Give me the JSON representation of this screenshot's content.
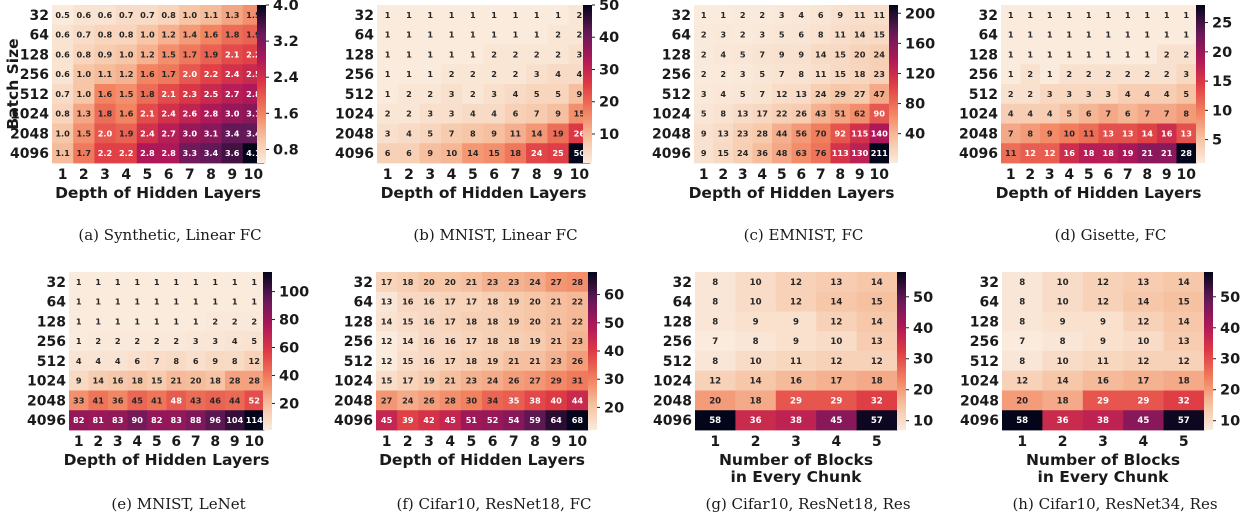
{
  "panels_meta": {
    "row_labels": [
      "32",
      "64",
      "128",
      "256",
      "512",
      "1024",
      "2048",
      "4096"
    ],
    "batch_axis_label": "Batch Size"
  },
  "chart_data": [
    {
      "type": "heatmap",
      "caption": "(a) Synthetic, Linear FC",
      "xlabel": [
        "Depth of Hidden Layers"
      ],
      "ylabel": "Batch Size",
      "x": [
        "1",
        "2",
        "3",
        "4",
        "5",
        "6",
        "7",
        "8",
        "9",
        "10"
      ],
      "y": [
        "32",
        "64",
        "128",
        "256",
        "512",
        "1024",
        "2048",
        "4096"
      ],
      "values": [
        [
          "0.5",
          "0.6",
          "0.6",
          "0.7",
          "0.7",
          "0.8",
          "1.0",
          "1.1",
          "1.3",
          "1.5"
        ],
        [
          "0.6",
          "0.7",
          "0.8",
          "0.8",
          "1.0",
          "1.2",
          "1.4",
          "1.6",
          "1.8",
          "1.9"
        ],
        [
          "0.6",
          "0.8",
          "0.9",
          "1.0",
          "1.2",
          "1.5",
          "1.7",
          "1.9",
          "2.1",
          "2.2"
        ],
        [
          "0.6",
          "1.0",
          "1.1",
          "1.2",
          "1.6",
          "1.7",
          "2.0",
          "2.2",
          "2.4",
          "2.5"
        ],
        [
          "0.7",
          "1.0",
          "1.6",
          "1.5",
          "1.8",
          "2.1",
          "2.3",
          "2.5",
          "2.7",
          "2.8"
        ],
        [
          "0.8",
          "1.3",
          "1.8",
          "1.6",
          "2.1",
          "2.4",
          "2.6",
          "2.8",
          "3.0",
          "3.1"
        ],
        [
          "1.0",
          "1.5",
          "2.0",
          "1.9",
          "2.4",
          "2.7",
          "3.0",
          "3.1",
          "3.4",
          "3.4"
        ],
        [
          "1.1",
          "1.7",
          "2.2",
          "2.2",
          "2.8",
          "2.8",
          "3.3",
          "3.4",
          "3.6",
          "4.1"
        ]
      ],
      "vmin": 0.5,
      "vmax": 4.0,
      "colorbar_ticks": [
        "4.0",
        "3.2",
        "2.4",
        "1.6",
        "0.8"
      ],
      "colorbar_tick_values": [
        4.0,
        3.2,
        2.4,
        1.6,
        0.8
      ]
    },
    {
      "type": "heatmap",
      "caption": "(b) MNIST, Linear FC",
      "xlabel": [
        "Depth of Hidden Layers"
      ],
      "ylabel": "",
      "x": [
        "1",
        "2",
        "3",
        "4",
        "5",
        "6",
        "7",
        "8",
        "9",
        "10"
      ],
      "y": [
        "32",
        "64",
        "128",
        "256",
        "512",
        "1024",
        "2048",
        "4096"
      ],
      "values": [
        [
          "1",
          "1",
          "1",
          "1",
          "1",
          "1",
          "1",
          "1",
          "1",
          "2"
        ],
        [
          "1",
          "1",
          "1",
          "1",
          "1",
          "1",
          "1",
          "1",
          "2",
          "2"
        ],
        [
          "1",
          "1",
          "1",
          "1",
          "1",
          "2",
          "2",
          "2",
          "2",
          "3"
        ],
        [
          "1",
          "1",
          "1",
          "2",
          "2",
          "2",
          "2",
          "3",
          "4",
          "4"
        ],
        [
          "1",
          "2",
          "2",
          "3",
          "2",
          "3",
          "4",
          "5",
          "5",
          "9"
        ],
        [
          "2",
          "2",
          "3",
          "3",
          "4",
          "4",
          "6",
          "7",
          "9",
          "15"
        ],
        [
          "3",
          "4",
          "5",
          "7",
          "8",
          "9",
          "11",
          "14",
          "19",
          "26"
        ],
        [
          "6",
          "6",
          "9",
          "10",
          "14",
          "15",
          "18",
          "24",
          "25",
          "50"
        ]
      ],
      "vmin": 1,
      "vmax": 50,
      "colorbar_ticks": [
        "50",
        "40",
        "30",
        "20",
        "10"
      ],
      "colorbar_tick_values": [
        50,
        40,
        30,
        20,
        10
      ]
    },
    {
      "type": "heatmap",
      "caption": "(c) EMNIST, FC",
      "xlabel": [
        "Depth of Hidden Layers"
      ],
      "ylabel": "",
      "x": [
        "1",
        "2",
        "3",
        "4",
        "5",
        "6",
        "7",
        "8",
        "9",
        "10"
      ],
      "y": [
        "32",
        "64",
        "128",
        "256",
        "512",
        "1024",
        "2048",
        "4096"
      ],
      "values": [
        [
          "1",
          "1",
          "2",
          "2",
          "3",
          "4",
          "6",
          "9",
          "11",
          "11"
        ],
        [
          "2",
          "3",
          "2",
          "3",
          "5",
          "6",
          "8",
          "11",
          "14",
          "15"
        ],
        [
          "2",
          "4",
          "5",
          "7",
          "9",
          "9",
          "14",
          "15",
          "20",
          "24"
        ],
        [
          "2",
          "2",
          "3",
          "5",
          "7",
          "8",
          "11",
          "15",
          "18",
          "23"
        ],
        [
          "3",
          "4",
          "5",
          "7",
          "12",
          "13",
          "24",
          "29",
          "27",
          "47"
        ],
        [
          "5",
          "8",
          "13",
          "17",
          "22",
          "26",
          "43",
          "51",
          "62",
          "90"
        ],
        [
          "9",
          "13",
          "23",
          "28",
          "44",
          "56",
          "70",
          "92",
          "115",
          "140"
        ],
        [
          "9",
          "15",
          "24",
          "36",
          "48",
          "63",
          "76",
          "113",
          "130",
          "211"
        ]
      ],
      "vmin": 1,
      "vmax": 211,
      "colorbar_ticks": [
        "200",
        "160",
        "120",
        "80",
        "40"
      ],
      "colorbar_tick_values": [
        200,
        160,
        120,
        80,
        40
      ]
    },
    {
      "type": "heatmap",
      "caption": "(d) Gisette, FC",
      "xlabel": [
        "Depth of Hidden Layers"
      ],
      "ylabel": "",
      "x": [
        "1",
        "2",
        "3",
        "4",
        "5",
        "6",
        "7",
        "8",
        "9",
        "10"
      ],
      "y": [
        "32",
        "64",
        "128",
        "256",
        "512",
        "1024",
        "2048",
        "4096"
      ],
      "values": [
        [
          "1",
          "1",
          "1",
          "1",
          "1",
          "1",
          "1",
          "1",
          "1",
          "1"
        ],
        [
          "1",
          "1",
          "1",
          "1",
          "1",
          "1",
          "1",
          "1",
          "1",
          "1"
        ],
        [
          "1",
          "1",
          "1",
          "1",
          "1",
          "1",
          "1",
          "1",
          "2",
          "2"
        ],
        [
          "1",
          "2",
          "1",
          "2",
          "2",
          "2",
          "2",
          "2",
          "2",
          "3"
        ],
        [
          "2",
          "2",
          "3",
          "3",
          "3",
          "3",
          "4",
          "4",
          "4",
          "5"
        ],
        [
          "4",
          "4",
          "4",
          "5",
          "6",
          "7",
          "6",
          "7",
          "7",
          "8"
        ],
        [
          "7",
          "8",
          "9",
          "10",
          "11",
          "13",
          "13",
          "14",
          "16",
          "13"
        ],
        [
          "11",
          "12",
          "12",
          "16",
          "18",
          "18",
          "19",
          "21",
          "21",
          "28"
        ]
      ],
      "vmin": 1,
      "vmax": 28,
      "colorbar_ticks": [
        "25",
        "20",
        "15",
        "10",
        "5"
      ],
      "colorbar_tick_values": [
        25,
        20,
        15,
        10,
        5
      ]
    },
    {
      "type": "heatmap",
      "caption": "(e) MNIST, LeNet",
      "xlabel": [
        "Depth of Hidden Layers"
      ],
      "ylabel": "",
      "x": [
        "1",
        "2",
        "3",
        "4",
        "5",
        "6",
        "7",
        "8",
        "9",
        "10"
      ],
      "y": [
        "32",
        "64",
        "128",
        "256",
        "512",
        "1024",
        "2048",
        "4096"
      ],
      "values": [
        [
          "1",
          "1",
          "1",
          "1",
          "1",
          "1",
          "1",
          "1",
          "1",
          "1"
        ],
        [
          "1",
          "1",
          "1",
          "1",
          "1",
          "1",
          "1",
          "1",
          "1",
          "1"
        ],
        [
          "1",
          "1",
          "1",
          "1",
          "1",
          "1",
          "1",
          "2",
          "2",
          "2"
        ],
        [
          "1",
          "2",
          "2",
          "2",
          "2",
          "2",
          "3",
          "3",
          "4",
          "5"
        ],
        [
          "4",
          "4",
          "4",
          "6",
          "7",
          "8",
          "6",
          "9",
          "8",
          "12"
        ],
        [
          "9",
          "14",
          "16",
          "18",
          "15",
          "21",
          "20",
          "18",
          "28",
          "28"
        ],
        [
          "33",
          "41",
          "36",
          "45",
          "41",
          "48",
          "43",
          "46",
          "44",
          "52"
        ],
        [
          "82",
          "81",
          "83",
          "90",
          "82",
          "83",
          "88",
          "96",
          "104",
          "114"
        ]
      ],
      "vmin": 1,
      "vmax": 114,
      "colorbar_ticks": [
        "100",
        "80",
        "60",
        "40",
        "20"
      ],
      "colorbar_tick_values": [
        100,
        80,
        60,
        40,
        20
      ]
    },
    {
      "type": "heatmap",
      "caption": "(f) Cifar10, ResNet18, FC",
      "xlabel": [
        "Depth of Hidden Layers"
      ],
      "ylabel": "",
      "x": [
        "1",
        "2",
        "3",
        "4",
        "5",
        "6",
        "7",
        "8",
        "9",
        "10"
      ],
      "y": [
        "32",
        "64",
        "128",
        "256",
        "512",
        "1024",
        "2048",
        "4096"
      ],
      "values": [
        [
          "17",
          "18",
          "20",
          "20",
          "21",
          "23",
          "23",
          "24",
          "27",
          "28"
        ],
        [
          "13",
          "16",
          "16",
          "17",
          "17",
          "18",
          "19",
          "20",
          "21",
          "22"
        ],
        [
          "14",
          "15",
          "16",
          "17",
          "18",
          "18",
          "19",
          "20",
          "21",
          "22"
        ],
        [
          "12",
          "14",
          "16",
          "16",
          "17",
          "18",
          "18",
          "19",
          "21",
          "23"
        ],
        [
          "12",
          "15",
          "16",
          "17",
          "18",
          "19",
          "21",
          "21",
          "23",
          "26"
        ],
        [
          "15",
          "17",
          "19",
          "21",
          "23",
          "24",
          "26",
          "27",
          "29",
          "31"
        ],
        [
          "27",
          "24",
          "26",
          "28",
          "30",
          "34",
          "35",
          "38",
          "40",
          "44"
        ],
        [
          "45",
          "39",
          "42",
          "45",
          "51",
          "52",
          "54",
          "59",
          "64",
          "68"
        ]
      ],
      "vmin": 12,
      "vmax": 68,
      "colorbar_ticks": [
        "60",
        "50",
        "40",
        "30",
        "20"
      ],
      "colorbar_tick_values": [
        60,
        50,
        40,
        30,
        20
      ]
    },
    {
      "type": "heatmap",
      "caption": "(g) Cifar10, ResNet18, Res",
      "xlabel": [
        "Number of Blocks",
        "in Every Chunk"
      ],
      "ylabel": "",
      "x": [
        "1",
        "2",
        "3",
        "4",
        "5"
      ],
      "y": [
        "32",
        "64",
        "128",
        "256",
        "512",
        "1024",
        "2048",
        "4096"
      ],
      "values": [
        [
          "8",
          "10",
          "12",
          "13",
          "14"
        ],
        [
          "8",
          "10",
          "12",
          "14",
          "15"
        ],
        [
          "8",
          "9",
          "9",
          "12",
          "14"
        ],
        [
          "7",
          "8",
          "9",
          "10",
          "13"
        ],
        [
          "8",
          "10",
          "11",
          "12",
          "12"
        ],
        [
          "12",
          "14",
          "16",
          "17",
          "18"
        ],
        [
          "20",
          "18",
          "29",
          "29",
          "32"
        ],
        [
          "58",
          "36",
          "38",
          "45",
          "57"
        ]
      ],
      "vmin": 7,
      "vmax": 58,
      "colorbar_ticks": [
        "50",
        "40",
        "30",
        "20",
        "10"
      ],
      "colorbar_tick_values": [
        50,
        40,
        30,
        20,
        10
      ]
    },
    {
      "type": "heatmap",
      "caption": "(h) Cifar10, ResNet34, Res",
      "xlabel": [
        "Number of Blocks",
        "in Every Chunk"
      ],
      "ylabel": "",
      "x": [
        "1",
        "2",
        "3",
        "4",
        "5"
      ],
      "y": [
        "32",
        "64",
        "128",
        "256",
        "512",
        "1024",
        "2048",
        "4096"
      ],
      "values": [
        [
          "8",
          "10",
          "12",
          "13",
          "14"
        ],
        [
          "8",
          "10",
          "12",
          "14",
          "15"
        ],
        [
          "8",
          "9",
          "9",
          "12",
          "14"
        ],
        [
          "7",
          "8",
          "9",
          "10",
          "13"
        ],
        [
          "8",
          "10",
          "11",
          "12",
          "12"
        ],
        [
          "12",
          "14",
          "16",
          "17",
          "18"
        ],
        [
          "20",
          "18",
          "29",
          "29",
          "32"
        ],
        [
          "58",
          "36",
          "38",
          "45",
          "57"
        ]
      ],
      "vmin": 7,
      "vmax": 58,
      "colorbar_ticks": [
        "50",
        "40",
        "30",
        "20",
        "10"
      ],
      "colorbar_tick_values": [
        50,
        40,
        30,
        20,
        10
      ]
    }
  ]
}
